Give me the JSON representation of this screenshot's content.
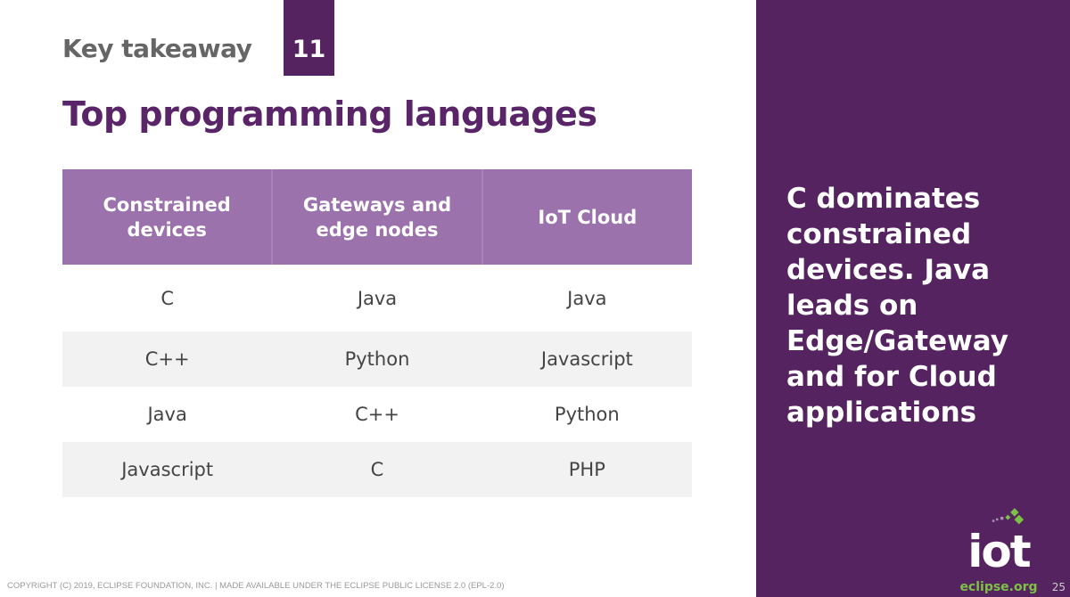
{
  "header": {
    "kicker": "Key takeaway",
    "badge": "11",
    "title": "Top programming languages"
  },
  "table": {
    "columns": [
      "Constrained devices",
      "Gateways and edge nodes",
      "IoT Cloud"
    ],
    "rows": [
      [
        "C",
        "Java",
        "Java"
      ],
      [
        "C++",
        "Python",
        "Javascript"
      ],
      [
        "Java",
        "C++",
        "Python"
      ],
      [
        "Javascript",
        "C",
        "PHP"
      ]
    ]
  },
  "sidebar": {
    "text": "C dominates constrained devices. Java leads on Edge/Gateway and for Cloud applications",
    "logo_main": "iot",
    "logo_sub": "eclipse.org",
    "page_number": "25"
  },
  "footer": {
    "copyright": "COPYRIGHT (C) 2019, ECLIPSE FOUNDATION, INC. | MADE AVAILABLE UNDER THE ECLIPSE PUBLIC LICENSE 2.0 (EPL-2.0)"
  },
  "colors": {
    "brand_purple": "#55235f",
    "header_row": "#9b72ab",
    "title": "#5a2468",
    "logo_green": "#7cc245"
  }
}
